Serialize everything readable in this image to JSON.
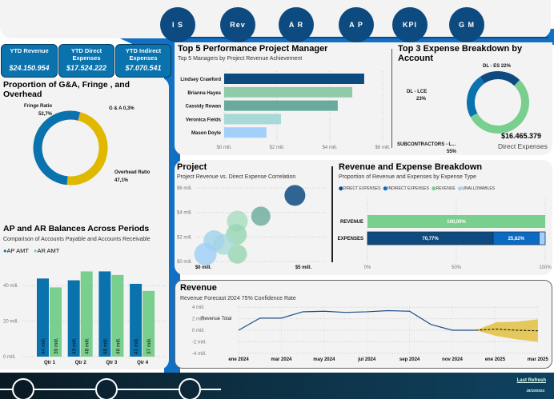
{
  "nav": [
    "I S",
    "Rev",
    "A R",
    "A P",
    "KPI",
    "G M"
  ],
  "kpis": [
    {
      "title": "YTD Revenue",
      "value": "$24.150.954"
    },
    {
      "title": "YTD Direct Expenses",
      "value": "$17.524.222"
    },
    {
      "title": "YTD Indirect Expenses",
      "value": "$7.070.541"
    }
  ],
  "colors": {
    "navy": "#0d4a80",
    "blue": "#0a72ad",
    "green": "#79cf8d",
    "yellow": "#e0b800",
    "brand": "#1170c4"
  },
  "ga": {
    "title": "Proportion of G&A, Fringe , and Overhead",
    "slices": [
      {
        "label": "G & A",
        "value": 0.3,
        "text": "G & A 0,3%"
      },
      {
        "label": "Overhead Ratio",
        "value": 47.1,
        "text": "47,1%"
      },
      {
        "label": "Fringe Ratio",
        "value": 52.7,
        "text": "52,7%"
      }
    ]
  },
  "top5": {
    "title": "Top 5 Performance Project Manager",
    "subtitle": "Top 5 Managers by Project Revenue Achievement",
    "managers": [
      {
        "name": "Lindsey Crawford",
        "value": 5.3
      },
      {
        "name": "Brianna Hayes",
        "value": 4.85
      },
      {
        "name": "Cassidy Rowan",
        "value": 4.3
      },
      {
        "name": "Veronica Fields",
        "value": 2.15
      },
      {
        "name": "Mason Doyle",
        "value": 1.6
      }
    ],
    "ticks": [
      "$0 mill.",
      "$2 mill.",
      "$4 mill.",
      "$6 mill."
    ]
  },
  "top3": {
    "title": "Top 3 Expense Breakdown by Account",
    "slices": [
      {
        "label": "DL - ES 22%",
        "value": 22
      },
      {
        "label": "SUBCONTRACTORS - L...",
        "pct": "55%",
        "value": 55
      },
      {
        "label": "DL - LCE",
        "pct": "23%",
        "value": 23
      }
    ],
    "total": "$16.465.379",
    "total_label": "Direct Expenses"
  },
  "project": {
    "title": "Project",
    "subtitle": "Project Revenue vs. Direct Expense Correlation",
    "yticks": [
      "$6 mill.",
      "$4 mill.",
      "$2 mill.",
      "$0 mill."
    ],
    "xticks": [
      "$0 mill.",
      "$5 mill."
    ],
    "points": [
      {
        "x": 4.6,
        "y": 5.4
      },
      {
        "x": 3.0,
        "y": 3.7
      },
      {
        "x": 1.9,
        "y": 3.3
      },
      {
        "x": 1.85,
        "y": 2.2
      },
      {
        "x": 1.9,
        "y": 0.6
      },
      {
        "x": 1.25,
        "y": 1.4
      },
      {
        "x": 0.8,
        "y": 1.7
      },
      {
        "x": 0.4,
        "y": 0.6
      }
    ]
  },
  "breakdown": {
    "title": "Revenue and Expense Breakdown",
    "subtitle": "Proportion of Revenue and Expenses by Expense Type",
    "legend": [
      "DIRECT EXPENSES",
      "INDIRECT EXPENSES",
      "REVENUE",
      "UNALLOWABLES"
    ],
    "rows": [
      {
        "label": "REVENUE",
        "segments": [
          {
            "value": 100,
            "text": "100,00%"
          }
        ]
      },
      {
        "label": "EXPENSES",
        "segments": [
          {
            "value": 70.77,
            "text": "70,77%"
          },
          {
            "value": 25.82,
            "text": "25,82%"
          },
          {
            "value": 3.41,
            "text": ""
          }
        ]
      }
    ],
    "ticks": [
      "0%",
      "50%",
      "100%"
    ]
  },
  "apar": {
    "title": "AP and AR Balances Across Periods",
    "subtitle": "Comparison of Accounts Payable and Accounts Receivable",
    "legend": [
      "AP AMT",
      "AR AMT"
    ],
    "yticks": [
      "40 mill.",
      "20 mill.",
      "0 mill."
    ],
    "quarters": [
      {
        "q": "Qtr 1",
        "ap": 44,
        "ar": 39
      },
      {
        "q": "Qtr 2",
        "ap": 43,
        "ar": 48
      },
      {
        "q": "Qtr 3",
        "ap": 48,
        "ar": 46
      },
      {
        "q": "Qtr 4",
        "ap": 41,
        "ar": 37
      }
    ]
  },
  "revenue": {
    "title": "Revenue",
    "subtitle": "Revenue Forecast 2024 75% Confidence Rate",
    "series_label": "Revenue Total",
    "yticks": [
      "4 mill.",
      "2 mill.",
      "0 mill.",
      "-2 mill.",
      "-4 mill."
    ],
    "xticks": [
      "ene 2024",
      "mar 2024",
      "may 2024",
      "jul 2024",
      "sep 2024",
      "nov 2024",
      "ene 2025",
      "mar 2025"
    ],
    "actual": [
      0,
      2.1,
      2.1,
      3.2,
      3.3,
      3.1,
      3.2,
      3.4,
      3.3,
      1.0,
      0.0,
      0.0
    ],
    "forecast": {
      "mean": [
        0,
        0.2,
        0,
        -0.1
      ],
      "upper": [
        0,
        1.4,
        1.5,
        1.9
      ],
      "lower": [
        0,
        -1.0,
        -1.6,
        -2.0
      ]
    }
  },
  "footer": {
    "last_refresh": "Last Refresh",
    "date": "28/10/2024"
  }
}
